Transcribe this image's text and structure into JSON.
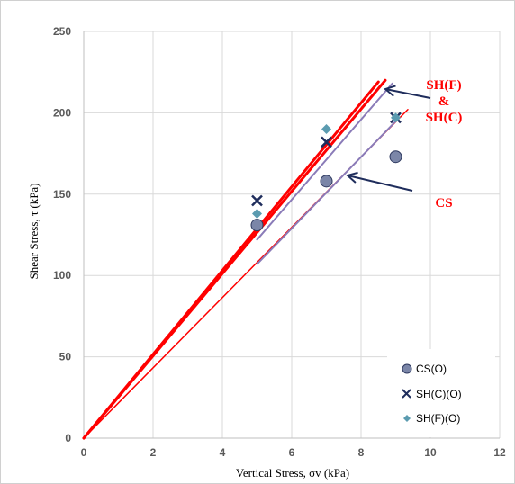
{
  "chart_data": {
    "type": "scatter",
    "title": "",
    "xlabel": "Vertical Stress, σv (kPa)",
    "ylabel": "Shear Stress, τ (kPa)",
    "xlim": [
      0,
      12
    ],
    "ylim": [
      0,
      250
    ],
    "xticks": [
      "0",
      "2",
      "4",
      "6",
      "8",
      "10",
      "12"
    ],
    "yticks": [
      "0",
      "50",
      "100",
      "150",
      "200",
      "250"
    ],
    "grid": true,
    "legend_position": "bottom-right",
    "series": [
      {
        "name": "CS(O)",
        "marker": "circle",
        "color": "#7b86a8",
        "x": [
          5,
          7,
          9
        ],
        "y": [
          131,
          158,
          173
        ]
      },
      {
        "name": "SH(C)(O)",
        "marker": "x",
        "color": "#1f2d5c",
        "x": [
          5,
          7,
          9
        ],
        "y": [
          146,
          182,
          197
        ]
      },
      {
        "name": "SH(F)(O)",
        "marker": "diamond",
        "color": "#5b9bb0",
        "x": [
          5,
          7,
          9
        ],
        "y": [
          138,
          190,
          197
        ]
      }
    ],
    "fit_lines": [
      {
        "x": [
          0,
          8.7
        ],
        "y": [
          0,
          220
        ],
        "color": "#ff0000",
        "width": 3
      },
      {
        "x": [
          0,
          8.5
        ],
        "y": [
          0,
          219
        ],
        "color": "#ff0000",
        "width": 3
      },
      {
        "x": [
          0,
          9.35
        ],
        "y": [
          0,
          202
        ],
        "color": "#ff0000",
        "width": 1.5
      },
      {
        "x": [
          5,
          9.1
        ],
        "y": [
          107,
          197
        ],
        "color": "#8a7bb8",
        "width": 2
      },
      {
        "x": [
          5,
          8.9
        ],
        "y": [
          122,
          218
        ],
        "color": "#8a7bb8",
        "width": 2
      }
    ],
    "annotations": [
      {
        "lines": [
          "SH(F)",
          "&",
          "SH(C)"
        ],
        "color": "#ff0000"
      },
      {
        "lines": [
          "CS"
        ],
        "color": "#ff0000"
      }
    ]
  }
}
